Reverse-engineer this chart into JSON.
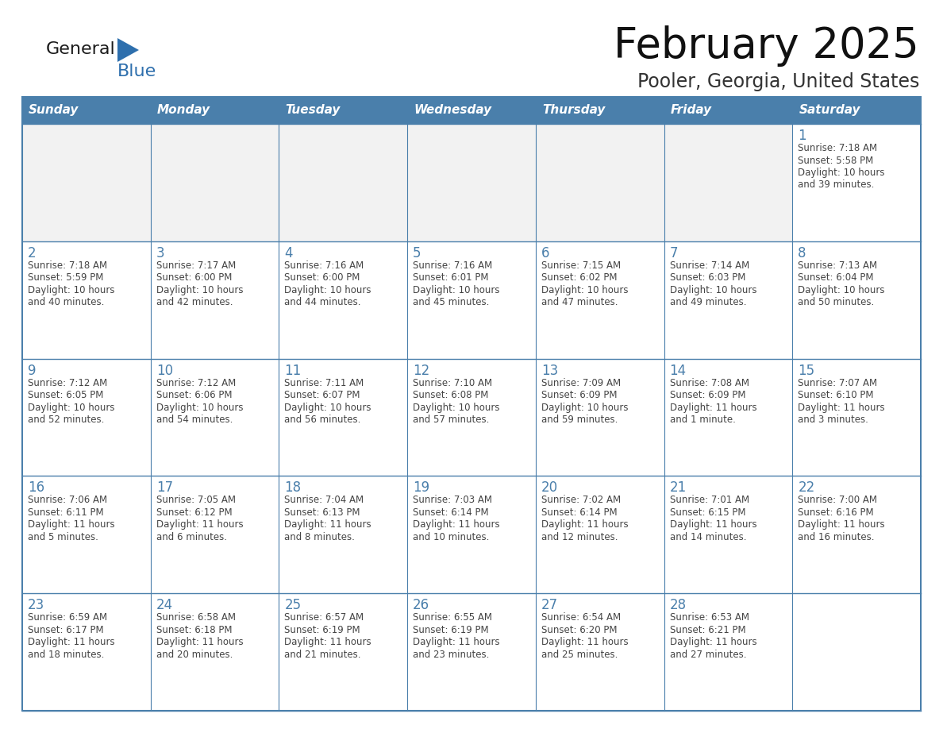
{
  "title": "February 2025",
  "subtitle": "Pooler, Georgia, United States",
  "header_bg": "#4a7fab",
  "header_text_color": "#ffffff",
  "cell_bg_gray": "#f2f2f2",
  "cell_bg_white": "#ffffff",
  "border_color": "#4a7fab",
  "text_color": "#444444",
  "day_number_color": "#4a7fab",
  "weekdays": [
    "Sunday",
    "Monday",
    "Tuesday",
    "Wednesday",
    "Thursday",
    "Friday",
    "Saturday"
  ],
  "logo_general_color": "#1a1a1a",
  "logo_blue_color": "#2e6fad",
  "calendar": [
    [
      null,
      null,
      null,
      null,
      null,
      null,
      {
        "day": 1,
        "sunrise": "7:18 AM",
        "sunset": "5:58 PM",
        "daylight_line1": "10 hours",
        "daylight_line2": "and 39 minutes."
      }
    ],
    [
      {
        "day": 2,
        "sunrise": "7:18 AM",
        "sunset": "5:59 PM",
        "daylight_line1": "10 hours",
        "daylight_line2": "and 40 minutes."
      },
      {
        "day": 3,
        "sunrise": "7:17 AM",
        "sunset": "6:00 PM",
        "daylight_line1": "10 hours",
        "daylight_line2": "and 42 minutes."
      },
      {
        "day": 4,
        "sunrise": "7:16 AM",
        "sunset": "6:00 PM",
        "daylight_line1": "10 hours",
        "daylight_line2": "and 44 minutes."
      },
      {
        "day": 5,
        "sunrise": "7:16 AM",
        "sunset": "6:01 PM",
        "daylight_line1": "10 hours",
        "daylight_line2": "and 45 minutes."
      },
      {
        "day": 6,
        "sunrise": "7:15 AM",
        "sunset": "6:02 PM",
        "daylight_line1": "10 hours",
        "daylight_line2": "and 47 minutes."
      },
      {
        "day": 7,
        "sunrise": "7:14 AM",
        "sunset": "6:03 PM",
        "daylight_line1": "10 hours",
        "daylight_line2": "and 49 minutes."
      },
      {
        "day": 8,
        "sunrise": "7:13 AM",
        "sunset": "6:04 PM",
        "daylight_line1": "10 hours",
        "daylight_line2": "and 50 minutes."
      }
    ],
    [
      {
        "day": 9,
        "sunrise": "7:12 AM",
        "sunset": "6:05 PM",
        "daylight_line1": "10 hours",
        "daylight_line2": "and 52 minutes."
      },
      {
        "day": 10,
        "sunrise": "7:12 AM",
        "sunset": "6:06 PM",
        "daylight_line1": "10 hours",
        "daylight_line2": "and 54 minutes."
      },
      {
        "day": 11,
        "sunrise": "7:11 AM",
        "sunset": "6:07 PM",
        "daylight_line1": "10 hours",
        "daylight_line2": "and 56 minutes."
      },
      {
        "day": 12,
        "sunrise": "7:10 AM",
        "sunset": "6:08 PM",
        "daylight_line1": "10 hours",
        "daylight_line2": "and 57 minutes."
      },
      {
        "day": 13,
        "sunrise": "7:09 AM",
        "sunset": "6:09 PM",
        "daylight_line1": "10 hours",
        "daylight_line2": "and 59 minutes."
      },
      {
        "day": 14,
        "sunrise": "7:08 AM",
        "sunset": "6:09 PM",
        "daylight_line1": "11 hours",
        "daylight_line2": "and 1 minute."
      },
      {
        "day": 15,
        "sunrise": "7:07 AM",
        "sunset": "6:10 PM",
        "daylight_line1": "11 hours",
        "daylight_line2": "and 3 minutes."
      }
    ],
    [
      {
        "day": 16,
        "sunrise": "7:06 AM",
        "sunset": "6:11 PM",
        "daylight_line1": "11 hours",
        "daylight_line2": "and 5 minutes."
      },
      {
        "day": 17,
        "sunrise": "7:05 AM",
        "sunset": "6:12 PM",
        "daylight_line1": "11 hours",
        "daylight_line2": "and 6 minutes."
      },
      {
        "day": 18,
        "sunrise": "7:04 AM",
        "sunset": "6:13 PM",
        "daylight_line1": "11 hours",
        "daylight_line2": "and 8 minutes."
      },
      {
        "day": 19,
        "sunrise": "7:03 AM",
        "sunset": "6:14 PM",
        "daylight_line1": "11 hours",
        "daylight_line2": "and 10 minutes."
      },
      {
        "day": 20,
        "sunrise": "7:02 AM",
        "sunset": "6:14 PM",
        "daylight_line1": "11 hours",
        "daylight_line2": "and 12 minutes."
      },
      {
        "day": 21,
        "sunrise": "7:01 AM",
        "sunset": "6:15 PM",
        "daylight_line1": "11 hours",
        "daylight_line2": "and 14 minutes."
      },
      {
        "day": 22,
        "sunrise": "7:00 AM",
        "sunset": "6:16 PM",
        "daylight_line1": "11 hours",
        "daylight_line2": "and 16 minutes."
      }
    ],
    [
      {
        "day": 23,
        "sunrise": "6:59 AM",
        "sunset": "6:17 PM",
        "daylight_line1": "11 hours",
        "daylight_line2": "and 18 minutes."
      },
      {
        "day": 24,
        "sunrise": "6:58 AM",
        "sunset": "6:18 PM",
        "daylight_line1": "11 hours",
        "daylight_line2": "and 20 minutes."
      },
      {
        "day": 25,
        "sunrise": "6:57 AM",
        "sunset": "6:19 PM",
        "daylight_line1": "11 hours",
        "daylight_line2": "and 21 minutes."
      },
      {
        "day": 26,
        "sunrise": "6:55 AM",
        "sunset": "6:19 PM",
        "daylight_line1": "11 hours",
        "daylight_line2": "and 23 minutes."
      },
      {
        "day": 27,
        "sunrise": "6:54 AM",
        "sunset": "6:20 PM",
        "daylight_line1": "11 hours",
        "daylight_line2": "and 25 minutes."
      },
      {
        "day": 28,
        "sunrise": "6:53 AM",
        "sunset": "6:21 PM",
        "daylight_line1": "11 hours",
        "daylight_line2": "and 27 minutes."
      },
      null
    ]
  ]
}
